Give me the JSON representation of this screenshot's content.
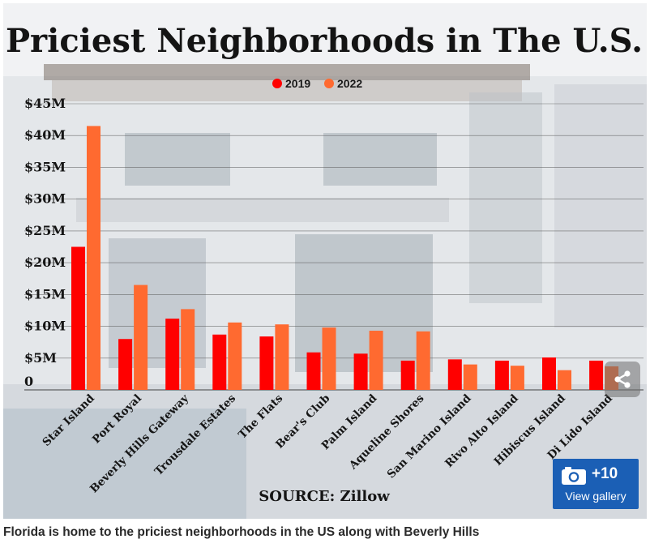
{
  "chart_data": {
    "type": "bar",
    "title": "Priciest Neighborhoods in The U.S.",
    "categories": [
      "Star Island",
      "Port Royal",
      "Beverly Hills Gateway",
      "Trousdale Estates",
      "The Flats",
      "Bear's Club",
      "Palm Island",
      "Aqueline Shores",
      "San Marino Island",
      "Rivo Alto Island",
      "Hibiscus Island",
      "Di Lido Island"
    ],
    "series": [
      {
        "name": "2019",
        "color": "#ff0000",
        "values": [
          22.5,
          8.0,
          11.2,
          8.7,
          8.4,
          5.9,
          5.7,
          4.6,
          4.8,
          4.6,
          5.1,
          4.6
        ]
      },
      {
        "name": "2022",
        "color": "#ff6a30",
        "values": [
          41.5,
          16.5,
          12.7,
          10.6,
          10.3,
          9.8,
          9.3,
          9.2,
          4.0,
          3.8,
          3.1,
          3.7
        ]
      }
    ],
    "yticks": [
      "0",
      "$5M",
      "$10M",
      "$15M",
      "$20M",
      "$25M",
      "$30M",
      "$35M",
      "$40M",
      "$45M"
    ],
    "ylim": [
      0,
      45
    ],
    "legend_position": "top-center",
    "grid": true,
    "source": "SOURCE: Zillow"
  },
  "share": {
    "icon": "share-icon"
  },
  "gallery": {
    "count": "+10",
    "label": "View gallery",
    "icon": "camera-icon"
  },
  "caption": "Florida is home to the priciest neighborhoods in the US along with Beverly Hills"
}
